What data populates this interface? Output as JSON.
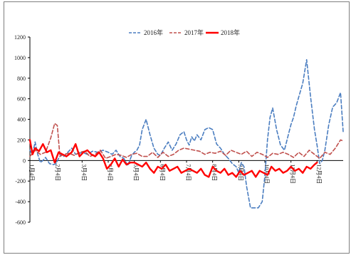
{
  "chart_data": {
    "type": "line",
    "title": "",
    "xlabel": "",
    "ylabel": "",
    "ylim": [
      -600,
      1200
    ],
    "yticks": [
      -600,
      -400,
      -200,
      0,
      200,
      400,
      600,
      800,
      1000,
      1200
    ],
    "grid": false,
    "legend_position": "top-center",
    "x_ticks": [
      "1月4日",
      "2月4日",
      "3月4日",
      "4月4日",
      "5月4日",
      "6月4日",
      "7月4日",
      "8月4日",
      "9月4日",
      "10月4日",
      "11月4日",
      "12月4日"
    ],
    "x_range": [
      1,
      13
    ],
    "series": [
      {
        "name": "2016年",
        "color": "#4a7dc0",
        "style": "dashed",
        "x": [
          1.0,
          1.1,
          1.2,
          1.3,
          1.4,
          1.5,
          1.6,
          1.75,
          1.9,
          2.0,
          2.1,
          2.2,
          2.3,
          2.45,
          2.6,
          2.75,
          2.9,
          3.0,
          3.2,
          3.4,
          3.6,
          3.8,
          4.0,
          4.15,
          4.3,
          4.45,
          4.6,
          4.75,
          4.9,
          5.0,
          5.1,
          5.2,
          5.3,
          5.45,
          5.6,
          5.75,
          5.9,
          6.0,
          6.15,
          6.3,
          6.45,
          6.6,
          6.75,
          6.9,
          7.0,
          7.1,
          7.2,
          7.3,
          7.4,
          7.55,
          7.7,
          7.85,
          8.0,
          8.15,
          8.3,
          8.45,
          8.6,
          8.75,
          8.9,
          9.0,
          9.1,
          9.2,
          9.3,
          9.45,
          9.6,
          9.75,
          9.9,
          10.0,
          10.1,
          10.2,
          10.3,
          10.45,
          10.6,
          10.75,
          10.9,
          11.0,
          11.1,
          11.2,
          11.3,
          11.45,
          11.6,
          11.75,
          11.9,
          12.0,
          12.1,
          12.2,
          12.3,
          12.45,
          12.6,
          12.75,
          12.9,
          13.0
        ],
        "values": [
          100,
          60,
          180,
          60,
          -20,
          0,
          30,
          -30,
          -40,
          -30,
          20,
          60,
          40,
          80,
          120,
          60,
          70,
          80,
          60,
          90,
          80,
          100,
          80,
          60,
          100,
          40,
          20,
          -50,
          50,
          80,
          100,
          150,
          300,
          400,
          250,
          120,
          60,
          50,
          120,
          180,
          100,
          160,
          250,
          280,
          200,
          150,
          230,
          190,
          250,
          200,
          300,
          320,
          300,
          160,
          120,
          60,
          20,
          -30,
          -60,
          -120,
          -20,
          -60,
          -250,
          -460,
          -460,
          -460,
          -400,
          -150,
          200,
          420,
          510,
          300,
          150,
          100,
          250,
          350,
          420,
          530,
          620,
          750,
          980,
          620,
          300,
          150,
          -30,
          0,
          100,
          350,
          520,
          560,
          660,
          280
        ]
      },
      {
        "name": "2017年",
        "color": "#c0504d",
        "style": "dashed",
        "x": [
          1.0,
          1.2,
          1.4,
          1.6,
          1.8,
          1.95,
          2.05,
          2.15,
          2.3,
          2.5,
          2.7,
          2.9,
          3.1,
          3.3,
          3.5,
          3.7,
          3.9,
          4.1,
          4.3,
          4.5,
          4.7,
          4.9,
          5.1,
          5.3,
          5.5,
          5.7,
          5.9,
          6.1,
          6.3,
          6.5,
          6.7,
          6.9,
          7.1,
          7.3,
          7.5,
          7.7,
          7.9,
          8.1,
          8.3,
          8.5,
          8.7,
          8.9,
          9.1,
          9.3,
          9.5,
          9.7,
          9.9,
          10.1,
          10.3,
          10.5,
          10.7,
          10.9,
          11.1,
          11.3,
          11.5,
          11.7,
          11.9,
          12.1,
          12.3,
          12.5,
          12.7,
          12.9,
          13.0
        ],
        "values": [
          40,
          100,
          60,
          80,
          220,
          360,
          340,
          40,
          60,
          70,
          50,
          80,
          90,
          40,
          60,
          100,
          20,
          40,
          60,
          50,
          30,
          60,
          70,
          40,
          40,
          80,
          30,
          80,
          40,
          60,
          100,
          120,
          110,
          100,
          90,
          60,
          80,
          70,
          90,
          50,
          100,
          80,
          60,
          90,
          40,
          80,
          60,
          30,
          70,
          60,
          80,
          60,
          30,
          80,
          40,
          100,
          60,
          20,
          80,
          60,
          120,
          200,
          190
        ]
      },
      {
        "name": "2018年",
        "color": "#ff0000",
        "style": "solid",
        "x": [
          1.0,
          1.1,
          1.2,
          1.35,
          1.5,
          1.65,
          1.8,
          1.95,
          2.1,
          2.25,
          2.4,
          2.6,
          2.75,
          2.9,
          3.05,
          3.2,
          3.35,
          3.5,
          3.65,
          3.8,
          3.95,
          4.1,
          4.25,
          4.4,
          4.55,
          4.7,
          4.85,
          5.0,
          5.15,
          5.3,
          5.45,
          5.6,
          5.75,
          5.9,
          6.05,
          6.2,
          6.35,
          6.5,
          6.65,
          6.8,
          6.95,
          7.1,
          7.25,
          7.4,
          7.55,
          7.7,
          7.85,
          8.0,
          8.15,
          8.3,
          8.45,
          8.6,
          8.75,
          8.9,
          9.05,
          9.2,
          9.35,
          9.5,
          9.65,
          9.8,
          9.95,
          10.1,
          10.25,
          10.4,
          10.55,
          10.7,
          10.85,
          11.0,
          11.15,
          11.3,
          11.45,
          11.6,
          11.75,
          11.9,
          12.0
        ],
        "values": [
          200,
          60,
          120,
          90,
          160,
          80,
          100,
          -20,
          80,
          60,
          40,
          80,
          160,
          40,
          80,
          100,
          60,
          40,
          80,
          20,
          -80,
          -40,
          20,
          -60,
          10,
          -40,
          -20,
          -20,
          -40,
          -60,
          -20,
          -80,
          -120,
          -60,
          -80,
          -40,
          -100,
          -80,
          -60,
          -120,
          -100,
          -80,
          -100,
          -120,
          -80,
          -140,
          -160,
          -60,
          -100,
          -120,
          -80,
          -140,
          -120,
          -160,
          -100,
          -140,
          -120,
          -100,
          -160,
          -100,
          -120,
          -140,
          -60,
          -100,
          -80,
          -120,
          -100,
          -60,
          -100,
          -80,
          -120,
          -60,
          -80,
          -40,
          -20
        ]
      }
    ]
  }
}
